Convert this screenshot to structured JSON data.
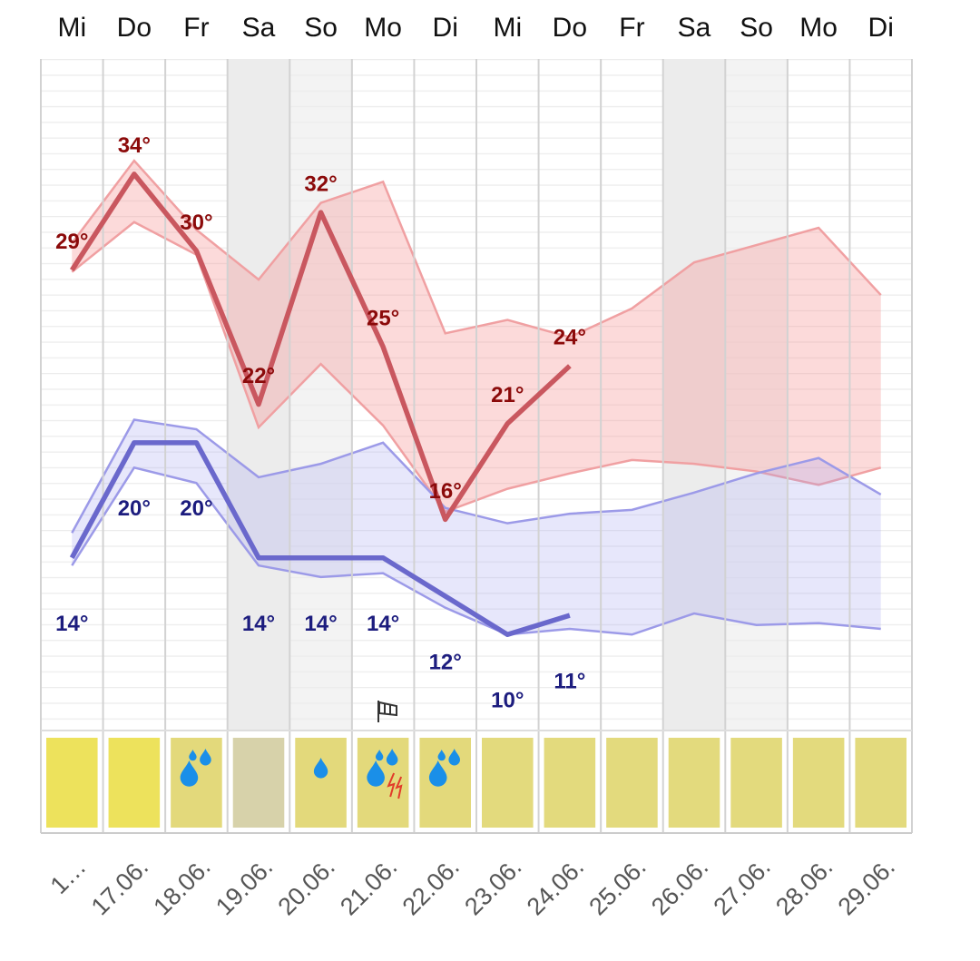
{
  "chart_data": {
    "type": "line",
    "categories": [
      "Mi",
      "Do",
      "Fr",
      "Sa",
      "So",
      "Mo",
      "Di",
      "Mi",
      "Do",
      "Fr",
      "Sa",
      "So",
      "Mo",
      "Di"
    ],
    "dates": [
      "1…",
      "17.06.",
      "18.06.",
      "19.06.",
      "20.06.",
      "21.06.",
      "22.06.",
      "23.06.",
      "24.06.",
      "25.06.",
      "26.06.",
      "27.06.",
      "28.06.",
      "29.06."
    ],
    "ylim": [
      5,
      40
    ],
    "series": [
      {
        "color": "#c9575f",
        "label_color": "#8b0a0a",
        "values": [
          29,
          34,
          30,
          22,
          32,
          25,
          16,
          21,
          24,
          null,
          null,
          null,
          null,
          null
        ],
        "value_labels": [
          "29°",
          "34°",
          "30°",
          "22°",
          "32°",
          "25°",
          "16°",
          "21°",
          "24°",
          null,
          null,
          null,
          null,
          null
        ]
      },
      {
        "color": "#6a68cc",
        "label_color": "#1c1c7e",
        "values": [
          14,
          20,
          20,
          14,
          14,
          14,
          12,
          10,
          11,
          null,
          null,
          null,
          null,
          null
        ],
        "value_labels": [
          "14°",
          "20°",
          "20°",
          "14°",
          "14°",
          "14°",
          "12°",
          "10°",
          "11°",
          null,
          null,
          null,
          null,
          null
        ]
      }
    ],
    "bands": [
      {
        "color": "#f0a0a2",
        "fill": "rgba(245,150,150,0.35)",
        "upper": [
          30.4,
          34.7,
          31.1,
          28.5,
          32.5,
          33.6,
          25.7,
          26.4,
          25.5,
          27.0,
          29.4,
          30.3,
          31.2,
          27.7
        ],
        "lower": [
          28.9,
          31.5,
          29.8,
          20.8,
          24.1,
          20.9,
          16.4,
          17.6,
          18.4,
          19.1,
          18.9,
          18.5,
          17.8,
          18.7
        ]
      },
      {
        "color": "#9c9ae8",
        "fill": "rgba(160,160,240,0.25)",
        "upper": [
          15.3,
          21.2,
          20.7,
          18.2,
          18.9,
          20.0,
          16.6,
          15.8,
          16.3,
          16.5,
          17.4,
          18.4,
          19.2,
          17.3
        ],
        "lower": [
          13.6,
          18.7,
          17.9,
          13.6,
          13.0,
          13.2,
          11.4,
          10.0,
          10.3,
          10.0,
          11.1,
          10.5,
          10.6,
          10.3
        ]
      }
    ],
    "day_colors": [
      "#ede25c",
      "#ede25c",
      "#e3d97b",
      "#d7d2aa",
      "#e3d97b",
      "#e3d97b",
      "#e3d97b",
      "#e3da7d",
      "#e3da7d",
      "#e3da7d",
      "#e3da7d",
      "#e3da7d",
      "#e3da7d",
      "#e3da7d"
    ]
  }
}
